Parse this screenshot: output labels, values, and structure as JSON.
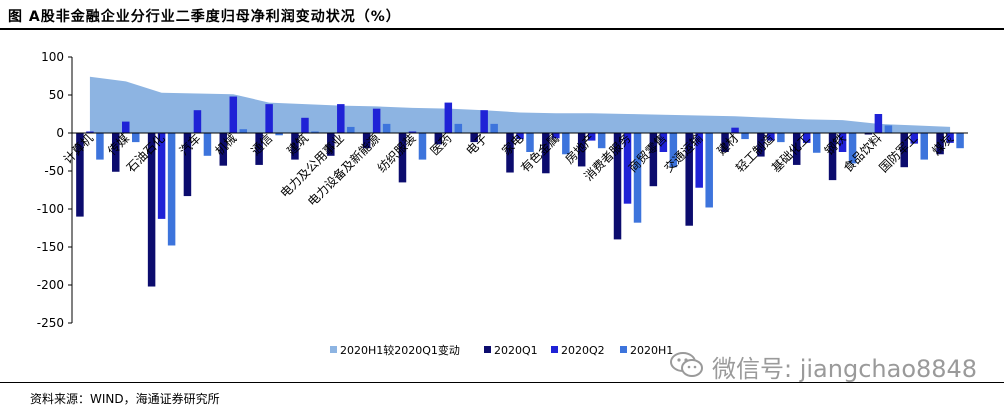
{
  "title": "图  A股非金融企业分行业二季度归母净利润变动状况（%）",
  "source": "资料来源：WIND，海通证券研究所",
  "watermark": {
    "text": "微信号: jiangchao8848",
    "icon": "wechat-icon"
  },
  "colors": {
    "area": "#8db4e2",
    "q1": "#0c0c6e",
    "q2": "#1f22d6",
    "h1": "#3d74dc",
    "axis": "#000000"
  },
  "chart_data": {
    "type": "bar",
    "title": "A股非金融企业分行业二季度归母净利润变动状况（%）",
    "ylim": [
      -250,
      100
    ],
    "yticks": [
      100,
      50,
      0,
      -50,
      -100,
      -150,
      -200,
      -250
    ],
    "categories": [
      "计算机",
      "传媒",
      "石油石化",
      "汽车",
      "机械",
      "通信",
      "建筑",
      "电力及公用事业",
      "电力设备及新能源",
      "纺织服装",
      "医药",
      "电子",
      "家电",
      "有色金属",
      "房地产",
      "消费者服务",
      "商贸零售",
      "交通运输",
      "建材",
      "轻工制造",
      "基础化工",
      "钢铁",
      "食品饮料",
      "国防军工",
      "煤炭"
    ],
    "series": [
      {
        "name": "2020H1较2020Q1变动",
        "kind": "area",
        "values": [
          74,
          68,
          53,
          52,
          51,
          40,
          38,
          36,
          35,
          33,
          32,
          30,
          27,
          26,
          26,
          25,
          24,
          23,
          22,
          20,
          18,
          17,
          12,
          10,
          8
        ]
      },
      {
        "name": "2020Q1",
        "kind": "bar",
        "values": [
          -110,
          -51,
          -202,
          -83,
          -43,
          -42,
          -35,
          -30,
          -20,
          -65,
          -15,
          -12,
          -52,
          -53,
          -44,
          -140,
          -70,
          -122,
          -25,
          -31,
          -42,
          -62,
          -2,
          -45,
          -28
        ]
      },
      {
        "name": "2020Q2",
        "kind": "bar",
        "values": [
          2,
          15,
          -113,
          30,
          48,
          38,
          20,
          38,
          32,
          2,
          40,
          30,
          -8,
          -7,
          -10,
          -93,
          -25,
          -72,
          7,
          -10,
          -13,
          -25,
          25,
          -14,
          -13
        ]
      },
      {
        "name": "2020H1",
        "kind": "bar",
        "values": [
          -35,
          -12,
          -148,
          -30,
          5,
          -3,
          2,
          8,
          12,
          -35,
          12,
          12,
          -25,
          -28,
          -20,
          -118,
          -45,
          -98,
          -8,
          -12,
          -26,
          -40,
          10,
          -35,
          -20
        ]
      }
    ],
    "legend": [
      "2020H1较2020Q1变动",
      "2020Q1",
      "2020Q2",
      "2020H1"
    ],
    "legend_position": "bottom",
    "grid": false
  }
}
